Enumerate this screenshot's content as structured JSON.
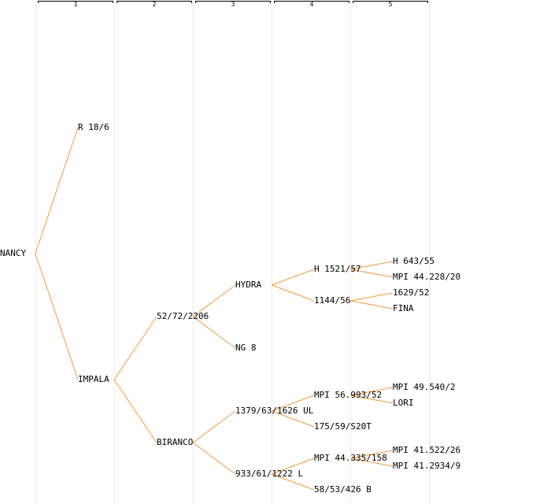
{
  "columns": [
    "1",
    "2",
    "3",
    "4",
    "5"
  ],
  "colors": {
    "edge": "#f29a3c",
    "grid": "#ececec",
    "text": "#000000"
  },
  "nodes": {
    "nancy": "NANCY",
    "r18": "R 18/6",
    "impala": "IMPALA",
    "n52": "52/72/2206",
    "biranco": "BIRANCO",
    "hydra": "HYDRA",
    "ng8": "NG 8",
    "n1379": "1379/63/1626 UL",
    "n933": "933/61/1222 L",
    "h1521": "H 1521/57",
    "n1144": "1144/56",
    "mpi56": "MPI 56.993/52",
    "n175": "175/59/S20T",
    "mpi44": "MPI 44.335/158",
    "n58": "58/53/426 B",
    "h643": "H 643/55",
    "mpi44228": "MPI 44.228/20",
    "n1629": "1629/52",
    "fina": "FINA",
    "mpi49": "MPI 49.540/2",
    "lori": "LORI",
    "mpi41522": "MPI 41.522/26",
    "mpi412934": "MPI 41.2934/9"
  },
  "edges": [
    [
      "nancy",
      "r18"
    ],
    [
      "nancy",
      "impala"
    ],
    [
      "impala",
      "n52"
    ],
    [
      "impala",
      "biranco"
    ],
    [
      "n52",
      "hydra"
    ],
    [
      "n52",
      "ng8"
    ],
    [
      "biranco",
      "n1379"
    ],
    [
      "biranco",
      "n933"
    ],
    [
      "hydra",
      "h1521"
    ],
    [
      "hydra",
      "n1144"
    ],
    [
      "n1379",
      "mpi56"
    ],
    [
      "n1379",
      "n175"
    ],
    [
      "n933",
      "mpi44"
    ],
    [
      "n933",
      "n58"
    ],
    [
      "h1521",
      "h643"
    ],
    [
      "h1521",
      "mpi44228"
    ],
    [
      "n1144",
      "n1629"
    ],
    [
      "n1144",
      "fina"
    ],
    [
      "mpi56",
      "mpi49"
    ],
    [
      "mpi56",
      "lori"
    ],
    [
      "mpi44",
      "mpi41522"
    ],
    [
      "mpi44",
      "mpi412934"
    ]
  ]
}
